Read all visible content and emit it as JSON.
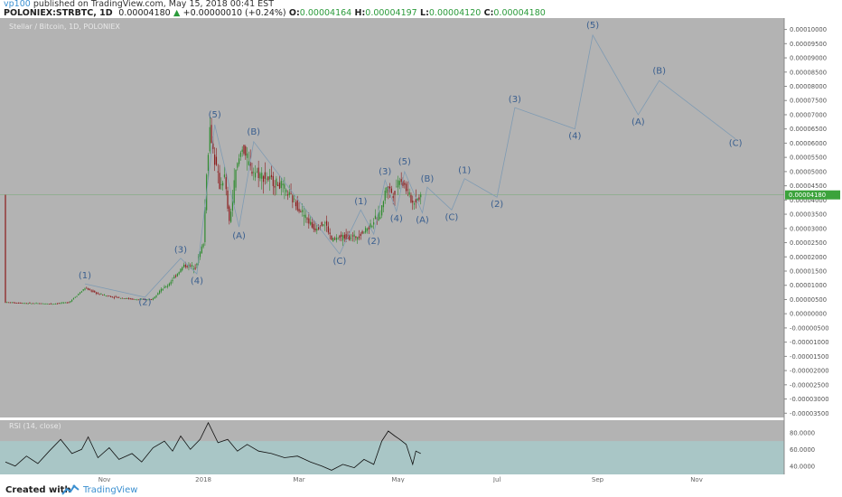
{
  "header": {
    "author": "vp100",
    "published": "published on TradingView.com, May 15, 2018 00:41 EST",
    "symbol": "POLONIEX:STRBTC, 1D",
    "last": "0.00004180",
    "change": "+0.00000010 (+0.24%)",
    "o_label": "O:",
    "o_value": "0.00004164",
    "h_label": "H:",
    "h_value": "0.00004197",
    "l_label": "L:",
    "l_value": "0.00004120",
    "c_label": "C:",
    "c_value": "0.00004180"
  },
  "colors": {
    "chart_bg": "#b3b3b3",
    "rsi_band": "#a9c6c6",
    "up_candle": "#2e8b2e",
    "down_candle": "#8b1a1a",
    "wave": "#7f9bb3",
    "label": "#3a5f8f",
    "price_tag": "#3ca33c"
  },
  "footer": {
    "created": "Created with",
    "brand": "TradingView"
  },
  "chart_data": [
    {
      "type": "line",
      "title": "Stellar / Bitcoin, 1D, POLONIEX",
      "last_price": "0.00004180",
      "y_ticks": [
        "0.00010000",
        "0.00009500",
        "0.00009000",
        "0.00008500",
        "0.00008000",
        "0.00007500",
        "0.00007000",
        "0.00006500",
        "0.00006000",
        "0.00005500",
        "0.00005000",
        "0.00004500",
        "0.00004000",
        "0.00003500",
        "0.00003000",
        "0.00002500",
        "0.00002000",
        "0.00001500",
        "0.00001000",
        "0.00000500",
        "0.00000000",
        "-0.00000500",
        "-0.00001000",
        "-0.00001500",
        "-0.00002000",
        "-0.00002500",
        "-0.00003000",
        "-0.00003500"
      ],
      "ylim": [
        -3.65e-05,
        0.000104
      ],
      "x_ticks": [
        "Nov",
        "2018",
        "Mar",
        "May",
        "Jul",
        "Sep",
        "Nov"
      ],
      "x_tick_dates": [
        "2017-11-01",
        "2018-01-01",
        "2018-03-01",
        "2018-05-01",
        "2018-07-01",
        "2018-09-01",
        "2018-11-01"
      ],
      "price_series": [
        [
          "2017-09-01",
          4e-06
        ],
        [
          "2017-09-15",
          3.7e-06
        ],
        [
          "2017-09-30",
          3.5e-06
        ],
        [
          "2017-10-10",
          4e-06
        ],
        [
          "2017-10-20",
          9e-06
        ],
        [
          "2017-10-28",
          7e-06
        ],
        [
          "2017-11-05",
          6e-06
        ],
        [
          "2017-11-20",
          5e-06
        ],
        [
          "2017-11-30",
          5e-06
        ],
        [
          "2017-12-05",
          8e-06
        ],
        [
          "2017-12-10",
          1e-05
        ],
        [
          "2017-12-15",
          1.35e-05
        ],
        [
          "2017-12-20",
          1.7e-05
        ],
        [
          "2017-12-27",
          1.65e-05
        ],
        [
          "2018-01-01",
          2.5e-05
        ],
        [
          "2018-01-03",
          5e-05
        ],
        [
          "2018-01-05",
          6.5e-05
        ],
        [
          "2018-01-08",
          5.4e-05
        ],
        [
          "2018-01-11",
          4.5e-05
        ],
        [
          "2018-01-14",
          4.8e-05
        ],
        [
          "2018-01-17",
          3.2e-05
        ],
        [
          "2018-01-21",
          5e-05
        ],
        [
          "2018-01-25",
          5.9e-05
        ],
        [
          "2018-01-30",
          5.1e-05
        ],
        [
          "2018-02-08",
          4.8e-05
        ],
        [
          "2018-02-18",
          4.5e-05
        ],
        [
          "2018-02-28",
          3.8e-05
        ],
        [
          "2018-03-10",
          3e-05
        ],
        [
          "2018-03-17",
          3.2e-05
        ],
        [
          "2018-03-21",
          2.6e-05
        ],
        [
          "2018-03-28",
          2.7e-05
        ],
        [
          "2018-04-05",
          2.7e-05
        ],
        [
          "2018-04-12",
          3e-05
        ],
        [
          "2018-04-20",
          3.5e-05
        ],
        [
          "2018-04-24",
          4.5e-05
        ],
        [
          "2018-04-28",
          4.2e-05
        ],
        [
          "2018-05-02",
          4.8e-05
        ],
        [
          "2018-05-06",
          4.4e-05
        ],
        [
          "2018-05-10",
          3.9e-05
        ],
        [
          "2018-05-15",
          4.18e-05
        ]
      ],
      "wave_paths": [
        [
          [
            "2017-10-20",
            1.05e-05
          ],
          [
            "2017-11-26",
            5.8e-06
          ],
          [
            "2017-12-18",
            1.95e-05
          ],
          [
            "2017-12-28",
            1.4e-05
          ],
          [
            "2018-01-08",
            6.65e-05
          ]
        ],
        [
          [
            "2018-01-08",
            6.65e-05
          ],
          [
            "2018-01-23",
            3.05e-05
          ],
          [
            "2018-02-01",
            6.05e-05
          ],
          [
            "2018-03-26",
            2.1e-05
          ]
        ],
        [
          [
            "2018-03-26",
            2.1e-05
          ],
          [
            "2018-04-08",
            3.65e-05
          ],
          [
            "2018-04-16",
            2.8e-05
          ],
          [
            "2018-04-23",
            4.7e-05
          ],
          [
            "2018-04-30",
            3.6e-05
          ],
          [
            "2018-05-05",
            5e-05
          ],
          [
            "2018-05-16",
            3.55e-05
          ],
          [
            "2018-05-19",
            4.45e-05
          ],
          [
            "2018-06-03",
            3.65e-05
          ],
          [
            "2018-06-11",
            4.75e-05
          ],
          [
            "2018-07-01",
            4.1e-05
          ],
          [
            "2018-07-12",
            7.25e-05
          ],
          [
            "2018-08-18",
            6.5e-05
          ],
          [
            "2018-08-29",
            9.8e-05
          ],
          [
            "2018-09-26",
            7e-05
          ],
          [
            "2018-10-09",
            8.2e-05
          ],
          [
            "2018-11-25",
            6.15e-05
          ]
        ]
      ],
      "wave_labels": [
        {
          "text": "(1)",
          "x": "2017-10-20",
          "y": 1.25e-05
        },
        {
          "text": "(2)",
          "x": "2017-11-26",
          "y": 3e-06
        },
        {
          "text": "(3)",
          "x": "2017-12-18",
          "y": 2.15e-05
        },
        {
          "text": "(4)",
          "x": "2017-12-28",
          "y": 1.05e-05
        },
        {
          "text": "(5)",
          "x": "2018-01-08",
          "y": 6.9e-05
        },
        {
          "text": "(A)",
          "x": "2018-01-23",
          "y": 2.65e-05
        },
        {
          "text": "(B)",
          "x": "2018-02-01",
          "y": 6.3e-05
        },
        {
          "text": "(C)",
          "x": "2018-03-26",
          "y": 1.75e-05
        },
        {
          "text": "(1)",
          "x": "2018-04-08",
          "y": 3.85e-05
        },
        {
          "text": "(2)",
          "x": "2018-04-16",
          "y": 2.45e-05
        },
        {
          "text": "(3)",
          "x": "2018-04-23",
          "y": 4.9e-05
        },
        {
          "text": "(4)",
          "x": "2018-04-30",
          "y": 3.25e-05
        },
        {
          "text": "(5)",
          "x": "2018-05-05",
          "y": 5.25e-05
        },
        {
          "text": "(B)",
          "x": "2018-05-19",
          "y": 4.65e-05
        },
        {
          "text": "(A)",
          "x": "2018-05-16",
          "y": 3.2e-05
        },
        {
          "text": "(C)",
          "x": "2018-06-03",
          "y": 3.3e-05
        },
        {
          "text": "(1)",
          "x": "2018-06-11",
          "y": 4.95e-05
        },
        {
          "text": "(2)",
          "x": "2018-07-01",
          "y": 3.75e-05
        },
        {
          "text": "(3)",
          "x": "2018-07-12",
          "y": 7.45e-05
        },
        {
          "text": "(4)",
          "x": "2018-08-18",
          "y": 6.15e-05
        },
        {
          "text": "(5)",
          "x": "2018-08-29",
          "y": 0.0001005
        },
        {
          "text": "(A)",
          "x": "2018-09-26",
          "y": 6.65e-05
        },
        {
          "text": "(B)",
          "x": "2018-10-09",
          "y": 8.45e-05
        },
        {
          "text": "(C)",
          "x": "2018-11-25",
          "y": 5.9e-05
        }
      ]
    },
    {
      "type": "line",
      "title": "RSI (14, close)",
      "y_ticks": [
        "80.0000",
        "60.0000",
        "40.0000"
      ],
      "ylim": [
        30,
        95
      ],
      "band": [
        30,
        70
      ],
      "series": [
        [
          "2017-09-01",
          45
        ],
        [
          "2017-09-07",
          40
        ],
        [
          "2017-09-14",
          52
        ],
        [
          "2017-09-21",
          43
        ],
        [
          "2017-09-28",
          58
        ],
        [
          "2017-10-05",
          72
        ],
        [
          "2017-10-12",
          55
        ],
        [
          "2017-10-18",
          60
        ],
        [
          "2017-10-22",
          75
        ],
        [
          "2017-10-28",
          50
        ],
        [
          "2017-11-04",
          62
        ],
        [
          "2017-11-10",
          48
        ],
        [
          "2017-11-18",
          55
        ],
        [
          "2017-11-24",
          45
        ],
        [
          "2017-12-01",
          62
        ],
        [
          "2017-12-08",
          70
        ],
        [
          "2017-12-13",
          58
        ],
        [
          "2017-12-18",
          76
        ],
        [
          "2017-12-24",
          60
        ],
        [
          "2017-12-30",
          72
        ],
        [
          "2018-01-04",
          92
        ],
        [
          "2018-01-10",
          68
        ],
        [
          "2018-01-16",
          72
        ],
        [
          "2018-01-22",
          58
        ],
        [
          "2018-01-28",
          66
        ],
        [
          "2018-02-04",
          58
        ],
        [
          "2018-02-12",
          55
        ],
        [
          "2018-02-20",
          50
        ],
        [
          "2018-02-28",
          52
        ],
        [
          "2018-03-08",
          45
        ],
        [
          "2018-03-15",
          40
        ],
        [
          "2018-03-21",
          35
        ],
        [
          "2018-03-28",
          42
        ],
        [
          "2018-04-04",
          38
        ],
        [
          "2018-04-10",
          48
        ],
        [
          "2018-04-16",
          42
        ],
        [
          "2018-04-21",
          70
        ],
        [
          "2018-04-25",
          82
        ],
        [
          "2018-04-29",
          76
        ],
        [
          "2018-05-02",
          72
        ],
        [
          "2018-05-06",
          66
        ],
        [
          "2018-05-10",
          42
        ],
        [
          "2018-05-12",
          58
        ],
        [
          "2018-05-15",
          55
        ]
      ]
    }
  ]
}
